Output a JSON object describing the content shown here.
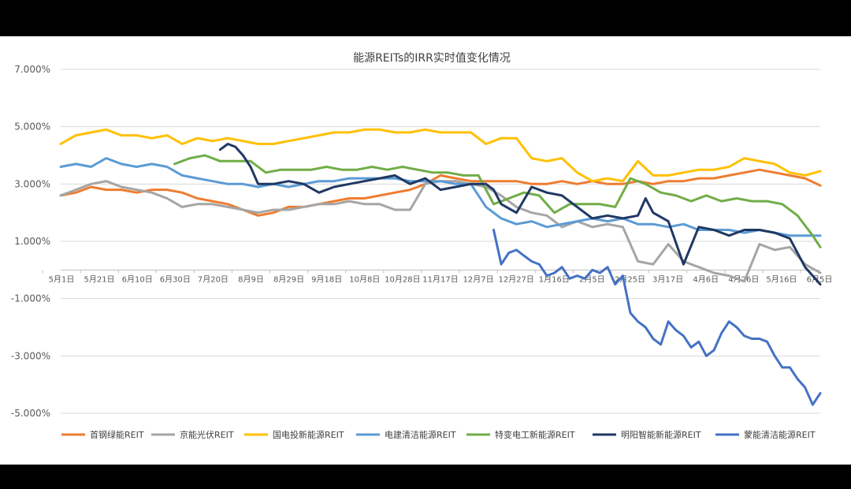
{
  "chart_data": {
    "type": "line",
    "title": "能源REITs的IRR实时值变化情况",
    "xlabel": "",
    "ylabel": "",
    "ylim": [
      -5,
      7
    ],
    "yticks": [
      -5,
      -3,
      -1,
      1,
      3,
      5,
      7
    ],
    "ytick_labels": [
      "-5.000%",
      "-3.000%",
      "-1.000%",
      "1.000%",
      "3.000%",
      "5.000%",
      "7.000%"
    ],
    "x_index_range": [
      0,
      100
    ],
    "xtick_labels": [
      "5月1日",
      "5月21日",
      "6月10日",
      "6月30日",
      "7月20日",
      "8月9日",
      "8月29日",
      "9月18日",
      "10月8日",
      "10月28日",
      "11月17日",
      "12月7日",
      "12月27日",
      "1月16日",
      "2月5日",
      "2月25日",
      "3月17日",
      "4月6日",
      "4月26日",
      "5月16日",
      "6月5日"
    ],
    "grid": true,
    "legend_position": "bottom",
    "series": [
      {
        "name": "首钢绿能REIT",
        "color": "#ED7D31",
        "x": [
          0,
          2,
          4,
          6,
          8,
          10,
          12,
          14,
          16,
          18,
          20,
          22,
          24,
          26,
          28,
          30,
          32,
          34,
          36,
          38,
          40,
          42,
          44,
          46,
          48,
          50,
          52,
          54,
          56,
          58,
          60,
          62,
          64,
          66,
          68,
          70,
          72,
          74,
          76,
          78,
          80,
          82,
          84,
          86,
          88,
          90,
          92,
          94,
          96,
          98,
          100
        ],
        "y": [
          2.6,
          2.7,
          2.9,
          2.8,
          2.8,
          2.7,
          2.8,
          2.8,
          2.7,
          2.5,
          2.4,
          2.3,
          2.1,
          1.9,
          2.0,
          2.2,
          2.2,
          2.3,
          2.4,
          2.5,
          2.5,
          2.6,
          2.7,
          2.8,
          3.0,
          3.3,
          3.2,
          3.1,
          3.1,
          3.1,
          3.1,
          3.0,
          3.0,
          3.1,
          3.0,
          3.1,
          3.0,
          3.0,
          3.1,
          3.0,
          3.1,
          3.1,
          3.2,
          3.2,
          3.3,
          3.4,
          3.5,
          3.4,
          3.3,
          3.2,
          2.95
        ]
      },
      {
        "name": "京能光伏REIT",
        "color": "#A5A5A5",
        "x": [
          0,
          2,
          4,
          6,
          8,
          10,
          12,
          14,
          16,
          18,
          20,
          22,
          24,
          26,
          28,
          30,
          32,
          34,
          36,
          38,
          40,
          42,
          44,
          46,
          48,
          50,
          52,
          54,
          56,
          58,
          60,
          62,
          64,
          66,
          68,
          70,
          72,
          74,
          76,
          78,
          80,
          82,
          84,
          86,
          88,
          90,
          92,
          94,
          96,
          98,
          100
        ],
        "y": [
          2.6,
          2.8,
          3.0,
          3.1,
          2.9,
          2.8,
          2.7,
          2.5,
          2.2,
          2.3,
          2.3,
          2.2,
          2.1,
          2.0,
          2.1,
          2.1,
          2.2,
          2.3,
          2.3,
          2.4,
          2.3,
          2.3,
          2.1,
          2.1,
          3.0,
          3.1,
          3.1,
          3.0,
          2.9,
          2.6,
          2.2,
          2.0,
          1.9,
          1.5,
          1.7,
          1.5,
          1.6,
          1.5,
          0.3,
          0.2,
          0.9,
          0.3,
          0.1,
          -0.1,
          -0.2,
          -0.4,
          0.9,
          0.7,
          0.8,
          0.2,
          -0.1
        ]
      },
      {
        "name": "国电投新能源REIT",
        "color": "#FFC000",
        "x": [
          0,
          2,
          4,
          6,
          8,
          10,
          12,
          14,
          16,
          18,
          20,
          22,
          24,
          26,
          28,
          30,
          32,
          34,
          36,
          38,
          40,
          42,
          44,
          46,
          48,
          50,
          52,
          54,
          56,
          58,
          60,
          62,
          64,
          66,
          68,
          70,
          72,
          74,
          76,
          78,
          80,
          82,
          84,
          86,
          88,
          90,
          92,
          94,
          96,
          98,
          100
        ],
        "y": [
          4.4,
          4.7,
          4.8,
          4.9,
          4.7,
          4.7,
          4.6,
          4.7,
          4.4,
          4.6,
          4.5,
          4.6,
          4.5,
          4.4,
          4.4,
          4.5,
          4.6,
          4.7,
          4.8,
          4.8,
          4.9,
          4.9,
          4.8,
          4.8,
          4.9,
          4.8,
          4.8,
          4.8,
          4.4,
          4.6,
          4.6,
          3.9,
          3.8,
          3.9,
          3.4,
          3.1,
          3.2,
          3.1,
          3.8,
          3.3,
          3.3,
          3.4,
          3.5,
          3.5,
          3.6,
          3.9,
          3.8,
          3.7,
          3.4,
          3.3,
          3.45
        ]
      },
      {
        "name": "电建清洁能源REIT",
        "color": "#5B9BD5",
        "x": [
          0,
          2,
          4,
          6,
          8,
          10,
          12,
          14,
          16,
          18,
          20,
          22,
          24,
          26,
          28,
          30,
          32,
          34,
          36,
          38,
          40,
          42,
          44,
          46,
          48,
          50,
          52,
          54,
          56,
          58,
          60,
          62,
          64,
          66,
          68,
          70,
          72,
          74,
          76,
          78,
          80,
          82,
          84,
          86,
          88,
          90,
          92,
          94,
          96,
          98,
          100
        ],
        "y": [
          3.6,
          3.7,
          3.6,
          3.9,
          3.7,
          3.6,
          3.7,
          3.6,
          3.3,
          3.2,
          3.1,
          3.0,
          3.0,
          2.9,
          3.0,
          2.9,
          3.0,
          3.1,
          3.1,
          3.2,
          3.2,
          3.2,
          3.2,
          3.1,
          3.1,
          3.1,
          3.0,
          3.0,
          2.2,
          1.8,
          1.6,
          1.7,
          1.5,
          1.6,
          1.7,
          1.8,
          1.7,
          1.8,
          1.6,
          1.6,
          1.5,
          1.6,
          1.4,
          1.4,
          1.4,
          1.3,
          1.4,
          1.3,
          1.2,
          1.2,
          1.2
        ]
      },
      {
        "name": "特变电工新能源REIT",
        "color": "#70AD47",
        "x": [
          15,
          17,
          19,
          21,
          23,
          25,
          27,
          29,
          31,
          33,
          35,
          37,
          39,
          41,
          43,
          45,
          47,
          49,
          51,
          53,
          55,
          57,
          59,
          61,
          63,
          65,
          67,
          69,
          71,
          73,
          75,
          77,
          79,
          81,
          83,
          85,
          87,
          89,
          91,
          93,
          95,
          97,
          99,
          100
        ],
        "y": [
          3.7,
          3.9,
          4.0,
          3.8,
          3.8,
          3.8,
          3.4,
          3.5,
          3.5,
          3.5,
          3.6,
          3.5,
          3.5,
          3.6,
          3.5,
          3.6,
          3.5,
          3.4,
          3.4,
          3.3,
          3.3,
          2.3,
          2.5,
          2.7,
          2.6,
          2.0,
          2.3,
          2.3,
          2.3,
          2.2,
          3.2,
          3.0,
          2.7,
          2.6,
          2.4,
          2.6,
          2.4,
          2.5,
          2.4,
          2.4,
          2.3,
          1.9,
          1.2,
          0.8
        ]
      },
      {
        "name": "明阳智能新能源REIT",
        "color": "#203864",
        "x": [
          21,
          22,
          23,
          24,
          25,
          26,
          28,
          30,
          32,
          34,
          36,
          38,
          40,
          42,
          44,
          46,
          48,
          50,
          52,
          54,
          56,
          57,
          58,
          60,
          62,
          64,
          66,
          68,
          70,
          72,
          74,
          76,
          77,
          78,
          80,
          82,
          84,
          86,
          88,
          90,
          92,
          94,
          96,
          98,
          100
        ],
        "y": [
          4.2,
          4.4,
          4.3,
          4.0,
          3.6,
          3.0,
          3.0,
          3.1,
          3.0,
          2.7,
          2.9,
          3.0,
          3.1,
          3.2,
          3.3,
          3.0,
          3.2,
          2.8,
          2.9,
          3.0,
          3.0,
          2.8,
          2.3,
          2.0,
          2.9,
          2.7,
          2.6,
          2.2,
          1.8,
          1.9,
          1.8,
          1.9,
          2.5,
          2.0,
          1.7,
          0.2,
          1.5,
          1.4,
          1.2,
          1.4,
          1.4,
          1.3,
          1.1,
          0.1,
          -0.5
        ]
      },
      {
        "name": "蒙能清洁能源REIT",
        "color": "#4472C4",
        "x": [
          57,
          58,
          59,
          60,
          61,
          62,
          63,
          64,
          65,
          66,
          67,
          68,
          69,
          70,
          71,
          72,
          73,
          74,
          75,
          76,
          77,
          78,
          79,
          80,
          81,
          82,
          83,
          84,
          85,
          86,
          87,
          88,
          89,
          90,
          91,
          92,
          93,
          94,
          95,
          96,
          97,
          98,
          99,
          100
        ],
        "y": [
          1.4,
          0.2,
          0.6,
          0.7,
          0.5,
          0.3,
          0.2,
          -0.2,
          -0.1,
          0.1,
          -0.3,
          -0.2,
          -0.3,
          0.0,
          -0.1,
          0.1,
          -0.5,
          -0.2,
          -1.5,
          -1.8,
          -2.0,
          -2.4,
          -2.6,
          -1.8,
          -2.1,
          -2.3,
          -2.7,
          -2.5,
          -3.0,
          -2.8,
          -2.2,
          -1.8,
          -2.0,
          -2.3,
          -2.4,
          -2.4,
          -2.5,
          -3.0,
          -3.4,
          -3.4,
          -3.8,
          -4.1,
          -4.7,
          -4.3
        ]
      }
    ]
  }
}
